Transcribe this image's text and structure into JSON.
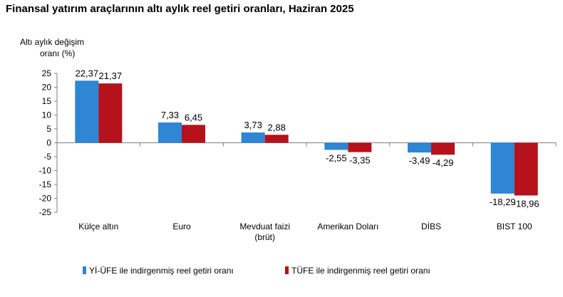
{
  "colors": {
    "series1": "#2E86D4",
    "series2": "#B5121B",
    "axis": "#7f7f7f",
    "grid": "#a6a6a6"
  },
  "chart_data": {
    "type": "bar",
    "title": "Finansal yatırım araçlarının altı aylık reel getiri oranları, Haziran 2025",
    "ylabel_lines": [
      "Altı aylık değişim",
      "oranı (%)"
    ],
    "ylim": [
      -25,
      25
    ],
    "yticks": [
      25,
      20,
      15,
      10,
      5,
      0,
      -5,
      -10,
      -15,
      -20,
      -25
    ],
    "categories": [
      [
        "Külçe altın"
      ],
      [
        "Euro"
      ],
      [
        "Mevduat faizi",
        "(brüt)"
      ],
      [
        "Amerikan Doları"
      ],
      [
        "DİBS"
      ],
      [
        "BIST 100"
      ]
    ],
    "series": [
      {
        "name": "Yİ-ÜFE ile indirgenmiş reel getiri oranı",
        "values": [
          22.37,
          7.33,
          3.73,
          -2.55,
          -3.49,
          -18.29
        ],
        "labels": [
          "22,37",
          "7,33",
          "3,73",
          "-2,55",
          "-3,49",
          "-18,29"
        ]
      },
      {
        "name": "TÜFE ile indirgenmiş reel getiri oranı",
        "values": [
          21.37,
          6.45,
          2.88,
          -3.35,
          -4.29,
          -18.96
        ],
        "labels": [
          "21,37",
          "6,45",
          "2,88",
          "-3,35",
          "-4,29",
          "-18,96"
        ]
      }
    ],
    "legend_position": "bottom",
    "grid": false
  }
}
